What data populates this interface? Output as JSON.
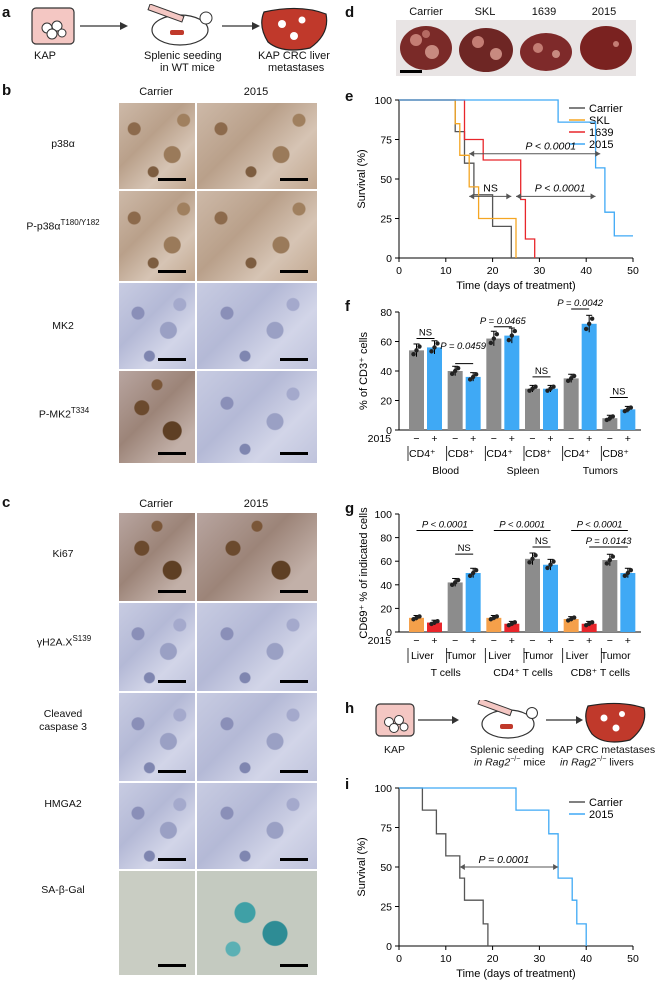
{
  "panel_letters": [
    "a",
    "b",
    "c",
    "d",
    "e",
    "f",
    "g",
    "h",
    "i"
  ],
  "panel_a": {
    "labels": [
      "KAP",
      "Splenic seeding",
      "in WT mice",
      "KAP CRC liver",
      "metastases"
    ]
  },
  "panel_b": {
    "col_titles": [
      "Carrier",
      "2015"
    ],
    "rows": [
      "p38α",
      "P-p38α",
      "MK2",
      "P-MK2"
    ],
    "row_sups": [
      "",
      "T180/Y182",
      "",
      "T334"
    ]
  },
  "panel_c": {
    "col_titles": [
      "Carrier",
      "2015"
    ],
    "rows": [
      "Ki67",
      "γH2A.X",
      "Cleaved",
      "caspase 3",
      "HMGA2",
      "SA-β-Gal"
    ],
    "row_sups": [
      "",
      "S139",
      "",
      "",
      "",
      ""
    ]
  },
  "panel_d": {
    "labels": [
      "Carrier",
      "SKL",
      "1639",
      "2015"
    ]
  },
  "panel_h": {
    "labels": [
      "KAP",
      "Splenic seeding",
      "in Rag2",
      "mice",
      "KAP CRC metastases",
      "in Rag2",
      "livers"
    ],
    "sup": "−/−"
  },
  "colors": {
    "carrier": "#555555",
    "skl": "#f5a623",
    "c1639": "#e8262b",
    "c2015": "#3fa9f5",
    "minus_bar": "#8c8c8c",
    "plus_bar": "#3fa9f5",
    "liver_minus": "#f5a04a",
    "liver_plus": "#e8262b"
  },
  "chart_data": [
    {
      "id": "e",
      "type": "line",
      "xlabel": "Time (days of treatment)",
      "ylabel": "Survival (%)",
      "xlim": [
        0,
        50
      ],
      "ylim": [
        0,
        100
      ],
      "xticks": [
        0,
        10,
        20,
        30,
        40,
        50
      ],
      "yticks": [
        0,
        25,
        50,
        75,
        100
      ],
      "legend": "top-right",
      "series": [
        {
          "name": "Carrier",
          "steps": [
            [
              0,
              100
            ],
            [
              12,
              100
            ],
            [
              12,
              80
            ],
            [
              14,
              80
            ],
            [
              14,
              60
            ],
            [
              16,
              60
            ],
            [
              16,
              40
            ],
            [
              20,
              40
            ],
            [
              20,
              20
            ],
            [
              24,
              20
            ],
            [
              24,
              0
            ]
          ]
        },
        {
          "name": "SKL",
          "steps": [
            [
              0,
              100
            ],
            [
              12,
              100
            ],
            [
              12,
              85
            ],
            [
              13,
              85
            ],
            [
              13,
              65
            ],
            [
              15,
              65
            ],
            [
              15,
              45
            ],
            [
              17,
              45
            ],
            [
              17,
              25
            ],
            [
              25,
              25
            ],
            [
              25,
              0
            ]
          ]
        },
        {
          "name": "1639",
          "steps": [
            [
              0,
              100
            ],
            [
              14,
              100
            ],
            [
              14,
              75
            ],
            [
              18,
              75
            ],
            [
              18,
              62
            ],
            [
              26,
              62
            ],
            [
              26,
              37
            ],
            [
              27,
              37
            ],
            [
              27,
              12
            ],
            [
              29,
              12
            ],
            [
              29,
              0
            ]
          ]
        },
        {
          "name": "2015",
          "steps": [
            [
              0,
              100
            ],
            [
              34,
              100
            ],
            [
              34,
              86
            ],
            [
              42,
              86
            ],
            [
              42,
              57
            ],
            [
              44,
              57
            ],
            [
              44,
              29
            ],
            [
              46,
              29
            ],
            [
              46,
              14
            ],
            [
              50,
              14
            ]
          ]
        }
      ],
      "annotations": [
        "P < 0.0001",
        "NS",
        "P < 0.0001"
      ]
    },
    {
      "id": "f",
      "type": "bar",
      "ylabel": "% of CD3⁺ cells",
      "ylim": [
        0,
        80
      ],
      "yticks": [
        0,
        20,
        40,
        60,
        80
      ],
      "treatment_label": "2015",
      "signs": [
        "−",
        "+"
      ],
      "groups": [
        {
          "cell": "CD4⁺",
          "tissue": "Blood",
          "values": [
            54,
            56
          ]
        },
        {
          "cell": "CD8⁺",
          "tissue": "Blood",
          "values": [
            40,
            36
          ]
        },
        {
          "cell": "CD4⁺",
          "tissue": "Spleen",
          "values": [
            62,
            64
          ]
        },
        {
          "cell": "CD8⁺",
          "tissue": "Spleen",
          "values": [
            28,
            28
          ]
        },
        {
          "cell": "CD4⁺",
          "tissue": "Tumors",
          "values": [
            35,
            72
          ]
        },
        {
          "cell": "CD8⁺",
          "tissue": "Tumors",
          "values": [
            8,
            14
          ]
        }
      ],
      "tissues": [
        "Blood",
        "Spleen",
        "Tumors"
      ],
      "annotations": [
        "NS",
        "P = 0.0459",
        "P = 0.0465",
        "NS",
        "P = 0.0042",
        "NS"
      ]
    },
    {
      "id": "g",
      "type": "bar",
      "ylabel": "CD69⁺ % of indicated cells",
      "ylim": [
        0,
        100
      ],
      "yticks": [
        0,
        20,
        40,
        60,
        80,
        100
      ],
      "treatment_label": "2015",
      "signs": [
        "−",
        "+"
      ],
      "groups": [
        {
          "site": "Liver",
          "type": "T cells",
          "values": [
            12,
            8
          ]
        },
        {
          "site": "Tumor",
          "type": "T cells",
          "values": [
            42,
            50
          ]
        },
        {
          "site": "Liver",
          "type": "CD4⁺ T cells",
          "values": [
            12,
            7
          ]
        },
        {
          "site": "Tumor",
          "type": "CD4⁺ T cells",
          "values": [
            62,
            57
          ]
        },
        {
          "site": "Liver",
          "type": "CD8⁺ T cells",
          "values": [
            11,
            7
          ]
        },
        {
          "site": "Tumor",
          "type": "CD8⁺ T cells",
          "values": [
            61,
            50
          ]
        }
      ],
      "types": [
        "T cells",
        "CD4⁺ T cells",
        "CD8⁺ T cells"
      ],
      "annotations": [
        "P < 0.0001",
        "NS",
        "P < 0.0001",
        "NS",
        "P < 0.0001",
        "P = 0.0143"
      ]
    },
    {
      "id": "i",
      "type": "line",
      "xlabel": "Time (days of treatment)",
      "ylabel": "Survival (%)",
      "xlim": [
        0,
        50
      ],
      "ylim": [
        0,
        100
      ],
      "xticks": [
        0,
        10,
        20,
        30,
        40,
        50
      ],
      "yticks": [
        0,
        25,
        50,
        75,
        100
      ],
      "legend": "top-right",
      "series": [
        {
          "name": "Carrier",
          "steps": [
            [
              0,
              100
            ],
            [
              5,
              100
            ],
            [
              5,
              86
            ],
            [
              8,
              86
            ],
            [
              8,
              71
            ],
            [
              10,
              71
            ],
            [
              10,
              57
            ],
            [
              13,
              57
            ],
            [
              13,
              43
            ],
            [
              14,
              43
            ],
            [
              14,
              29
            ],
            [
              18,
              29
            ],
            [
              18,
              14
            ],
            [
              19,
              14
            ],
            [
              19,
              0
            ]
          ]
        },
        {
          "name": "2015",
          "steps": [
            [
              0,
              100
            ],
            [
              25,
              100
            ],
            [
              25,
              86
            ],
            [
              32,
              86
            ],
            [
              32,
              71
            ],
            [
              34,
              71
            ],
            [
              34,
              43
            ],
            [
              37,
              43
            ],
            [
              37,
              29
            ],
            [
              38,
              29
            ],
            [
              38,
              14
            ],
            [
              40,
              14
            ],
            [
              40,
              0
            ]
          ]
        }
      ],
      "annotations": [
        "P = 0.0001"
      ]
    }
  ]
}
